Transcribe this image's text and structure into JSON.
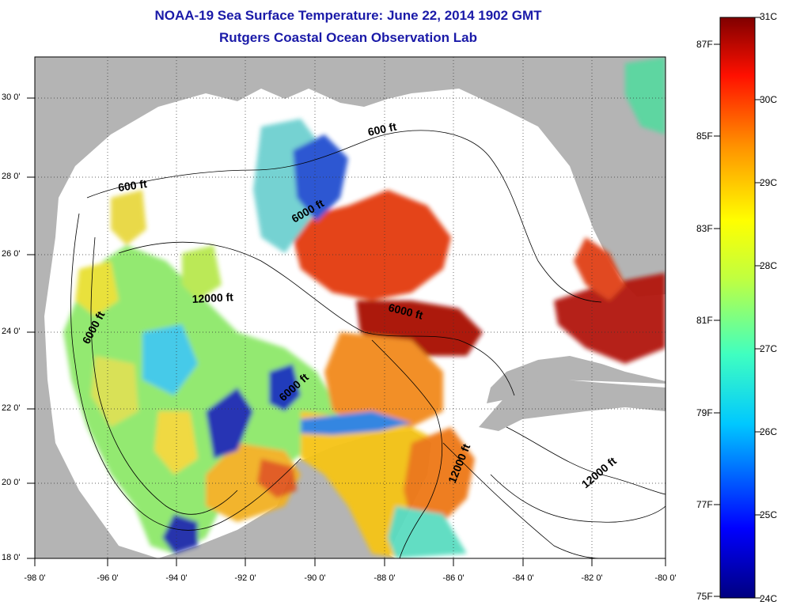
{
  "title": "NOAA-19 Sea Surface Temperature:  June 22, 2014 1902 GMT",
  "subtitle": "Rutgers Coastal Ocean Observation Lab",
  "lat_labels": [
    "30 0'",
    "28 0'",
    "26 0'",
    "24 0'",
    "22 0'",
    "20 0'",
    "18 0'"
  ],
  "lon_labels": [
    "-98 0'",
    "-96 0'",
    "-94 0'",
    "-92 0'",
    "-90 0'",
    "-88 0'",
    "-86 0'",
    "-84 0'",
    "-82 0'",
    "-80 0'"
  ],
  "contour_labels": [
    "600 ft",
    "600 ft",
    "6000 ft",
    "12000 ft",
    "6000 ft",
    "6000 ft",
    "6000 ft",
    "12000 ft",
    "12000 ft"
  ],
  "colorbar": {
    "celsius": [
      "31C",
      "30C",
      "29C",
      "28C",
      "27C",
      "26C",
      "25C",
      "24C"
    ],
    "fahrenheit": [
      "87F",
      "85F",
      "83F",
      "81F",
      "79F",
      "77F",
      "75F"
    ]
  },
  "colors": {
    "land": "#b4b4b4",
    "nodata": "#ffffff",
    "title": "#1a1aa8"
  }
}
